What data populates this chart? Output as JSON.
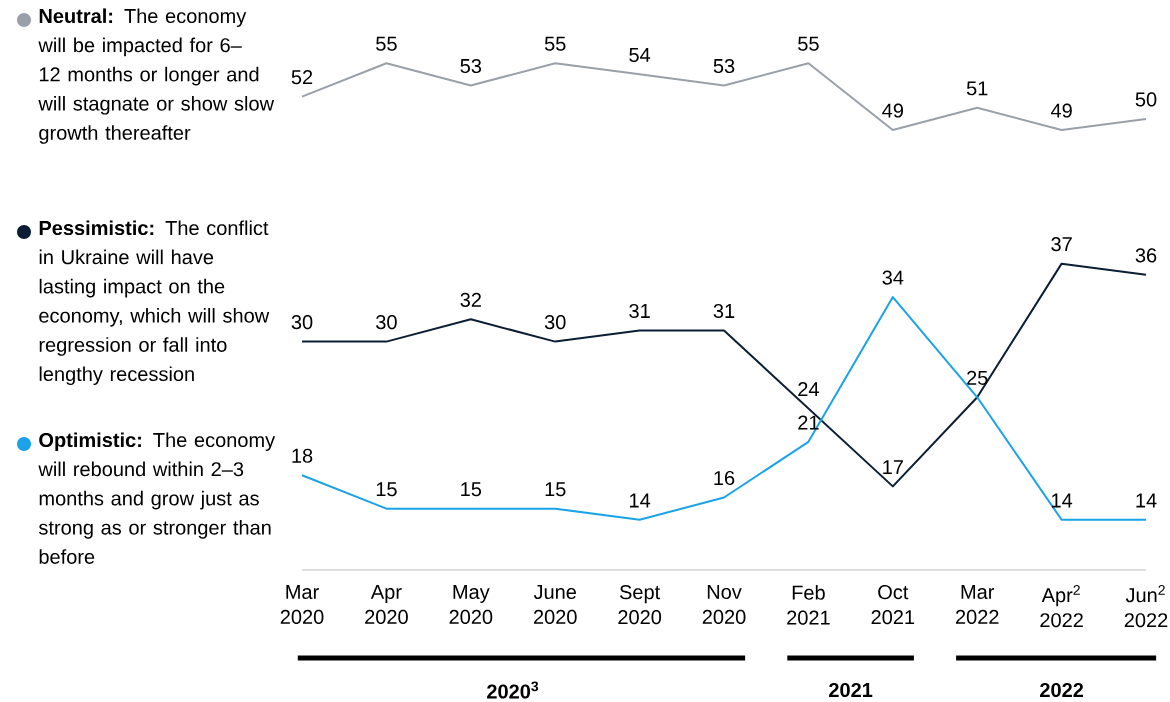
{
  "chart_data": {
    "type": "line",
    "legend": "left",
    "marker": "none",
    "line_style": "solid",
    "categories": [
      "Mar 2020",
      "Apr 2020",
      "May 2020",
      "June 2020",
      "Sept 2020",
      "Nov 2020",
      "Feb 2021",
      "Oct 2021",
      "Mar 2022",
      "Apr$^{2}$ 2022",
      "Jun$^{2}$ 2022"
    ],
    "series": [
      {
        "name": "**Neutral:** The economy will be impacted for 6–12 months or longer and will stagnate or show slow growth thereafter",
        "color": "#9aa0a8",
        "values": [
          52,
          55,
          53,
          55,
          54,
          53,
          55,
          49,
          51,
          49,
          50
        ],
        "value_labels": [
          "52",
          "55",
          "53",
          "55",
          "54",
          "53",
          "55",
          "49",
          "51",
          "49",
          "50"
        ]
      },
      {
        "name": "**Pessimistic:** The conflict in Ukraine will have lasting impact on the economy, which will show regression or fall into lengthy recession",
        "color": "#0b1e33",
        "values": [
          30,
          30,
          32,
          30,
          31,
          31,
          24,
          17,
          25,
          37,
          36
        ],
        "value_labels": [
          "30",
          "30",
          "32",
          "30",
          "31",
          "31",
          "24",
          "17",
          "25",
          "37",
          "36"
        ]
      },
      {
        "name": "**Optimistic:** The economy will rebound within 2–3 months and grow just as strong as or stronger than before",
        "color": "#1aa3e8",
        "values": [
          18,
          15,
          15,
          15,
          14,
          16,
          21,
          34,
          25,
          14,
          14
        ],
        "value_labels": [
          "18",
          "15",
          "15",
          "15",
          "14",
          "16",
          "21",
          "34",
          null,
          "14",
          "14"
        ]
      }
    ],
    "annotations": [
      "2020$^{3}$",
      "2021",
      "2022"
    ]
  }
}
